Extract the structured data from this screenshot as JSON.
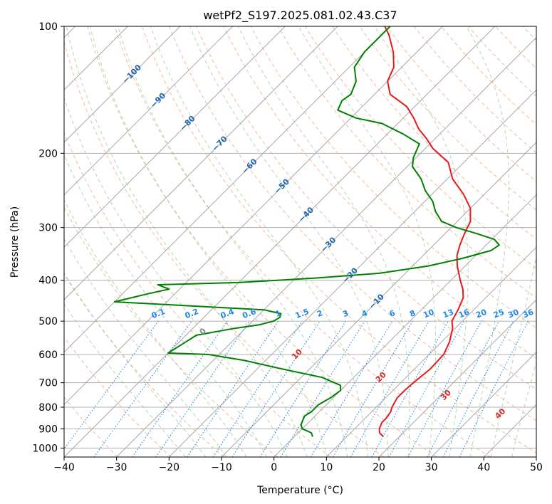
{
  "chart_data": {
    "type": "skew-t",
    "title": "wetPf2_S197.2025.081.02.43.C37",
    "xlabel": "Temperature (°C)",
    "ylabel": "Pressure (hPa)",
    "xlim": [
      -40,
      50
    ],
    "ylim_hpa": [
      1050,
      100
    ],
    "x_ticks": [
      "−40",
      "−30",
      "−20",
      "−10",
      "0",
      "10",
      "20",
      "30",
      "40",
      "50"
    ],
    "x_tick_values": [
      -40,
      -30,
      -20,
      -10,
      0,
      10,
      20,
      30,
      40,
      50
    ],
    "y_ticks": [
      "100",
      "200",
      "300",
      "400",
      "500",
      "600",
      "700",
      "800",
      "900",
      "1000"
    ],
    "y_tick_values": [
      100,
      200,
      300,
      400,
      500,
      600,
      700,
      800,
      900,
      1000
    ],
    "grid": true,
    "isotherm_spacing_c": 10,
    "temperature_profile": {
      "color": "#e41a1c",
      "points": [
        [
          940,
          17
        ],
        [
          920,
          15.5
        ],
        [
          900,
          14.7
        ],
        [
          870,
          14
        ],
        [
          850,
          14
        ],
        [
          820,
          13.6
        ],
        [
          800,
          13
        ],
        [
          760,
          12.2
        ],
        [
          730,
          12.2
        ],
        [
          700,
          12.4
        ],
        [
          650,
          13
        ],
        [
          600,
          12.8
        ],
        [
          560,
          11.5
        ],
        [
          520,
          9.5
        ],
        [
          500,
          8
        ],
        [
          470,
          7
        ],
        [
          440,
          5.7
        ],
        [
          420,
          4
        ],
        [
          400,
          1.8
        ],
        [
          370,
          -1.5
        ],
        [
          350,
          -3.5
        ],
        [
          330,
          -5
        ],
        [
          310,
          -6.3
        ],
        [
          290,
          -7.5
        ],
        [
          270,
          -10
        ],
        [
          250,
          -14
        ],
        [
          230,
          -19
        ],
        [
          210,
          -23
        ],
        [
          195,
          -28.5
        ],
        [
          185,
          -31.5
        ],
        [
          175,
          -35
        ],
        [
          165,
          -38
        ],
        [
          155,
          -41.5
        ],
        [
          145,
          -47
        ],
        [
          135,
          -50
        ],
        [
          125,
          -51.5
        ],
        [
          115,
          -54.5
        ],
        [
          105,
          -58.5
        ],
        [
          100,
          -61
        ]
      ]
    },
    "dewpoint_profile": {
      "color": "#008000",
      "points": [
        [
          940,
          3.5
        ],
        [
          920,
          2.5
        ],
        [
          900,
          0
        ],
        [
          880,
          -1
        ],
        [
          860,
          -1.5
        ],
        [
          840,
          -2
        ],
        [
          820,
          -1.5
        ],
        [
          790,
          -1.5
        ],
        [
          760,
          -0.5
        ],
        [
          730,
          0
        ],
        [
          710,
          -1
        ],
        [
          680,
          -6
        ],
        [
          650,
          -15
        ],
        [
          620,
          -24
        ],
        [
          600,
          -32
        ],
        [
          595,
          -40
        ],
        [
          540,
          -38
        ],
        [
          520,
          -32
        ],
        [
          510,
          -28
        ],
        [
          500,
          -26
        ],
        [
          490,
          -25.5
        ],
        [
          480,
          -26
        ],
        [
          470,
          -30
        ],
        [
          460,
          -45
        ],
        [
          450,
          -60
        ],
        [
          430,
          -55
        ],
        [
          420,
          -52
        ],
        [
          410,
          -55
        ],
        [
          405,
          -40
        ],
        [
          395,
          -26
        ],
        [
          385,
          -15
        ],
        [
          370,
          -7
        ],
        [
          355,
          -2
        ],
        [
          340,
          2
        ],
        [
          330,
          2.5
        ],
        [
          320,
          0.5
        ],
        [
          310,
          -4
        ],
        [
          300,
          -9
        ],
        [
          290,
          -13
        ],
        [
          275,
          -16
        ],
        [
          260,
          -18.5
        ],
        [
          245,
          -22
        ],
        [
          230,
          -25
        ],
        [
          215,
          -29
        ],
        [
          205,
          -30.5
        ],
        [
          190,
          -32
        ],
        [
          180,
          -37
        ],
        [
          170,
          -43
        ],
        [
          165,
          -49
        ],
        [
          158,
          -54
        ],
        [
          150,
          -55
        ],
        [
          145,
          -54.5
        ],
        [
          135,
          -56
        ],
        [
          125,
          -59
        ],
        [
          115,
          -60
        ],
        [
          105,
          -60
        ],
        [
          100,
          -60
        ]
      ]
    },
    "isotherm_labels": [
      "−100",
      "−90",
      "−80",
      "−70",
      "−60",
      "−50",
      "−40",
      "−30",
      "−20",
      "−10"
    ],
    "isotherm_label_values": [
      -100,
      -90,
      -80,
      -70,
      -60,
      -50,
      -40,
      -30,
      -20,
      -10
    ],
    "mixing_ratio_labels": [
      "0.1",
      "0.2",
      "0.4",
      "0.6",
      "1",
      "1.5",
      "2",
      "3",
      "4",
      "6",
      "8",
      "10",
      "13",
      "16",
      "20",
      "25",
      "30",
      "36"
    ],
    "mixing_ratio_values": [
      0.1,
      0.2,
      0.4,
      0.6,
      1,
      1.5,
      2,
      3,
      4,
      6,
      8,
      10,
      13,
      16,
      20,
      25,
      30,
      36
    ],
    "moist_adiabat_labels": [
      "0",
      "10",
      "20",
      "30",
      "40"
    ],
    "moist_adiabat_values": [
      0,
      10,
      20,
      30,
      40
    ],
    "colors": {
      "grid": "#b0b0b0",
      "isotherm": "#a8a8a8",
      "dry_adiabat": "#f4a582",
      "moist_adiabat": "#7fbf7b",
      "mixing_ratio": "#1f88e5",
      "isotherm_label": "#2166ac",
      "moist_label": "#d62728",
      "zero_label": "#888888",
      "freezing": "#d8b892"
    }
  }
}
